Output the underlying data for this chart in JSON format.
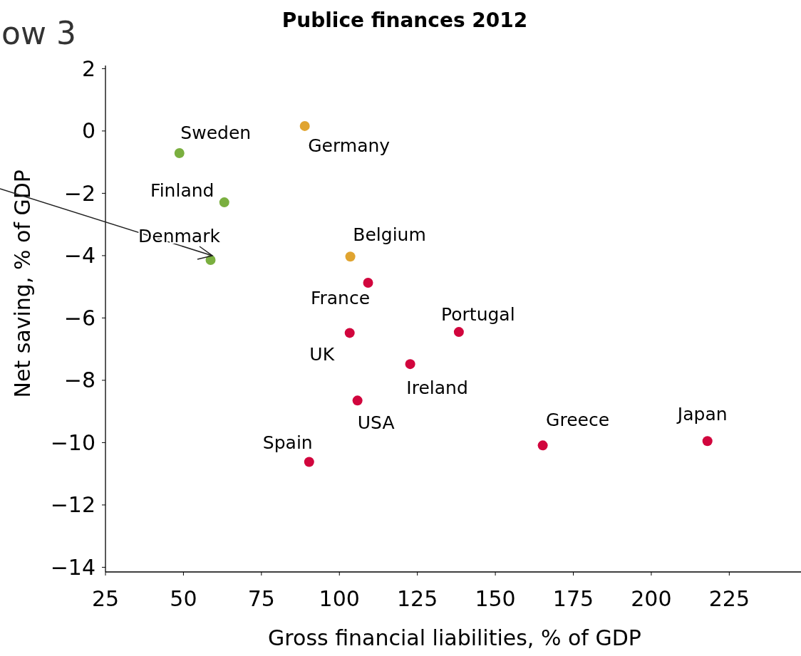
{
  "chart_data": {
    "type": "scatter",
    "title": "Publice finances 2012",
    "xlabel": "Gross financial liabilities, % of GDP",
    "ylabel": "Net saving, % of GDP",
    "xlim": [
      25,
      248
    ],
    "xticks": [
      25,
      50,
      75,
      100,
      125,
      150,
      175,
      200,
      225
    ],
    "ylim": [
      -14.15,
      2.1
    ],
    "yticks": [
      -14,
      -12,
      -10,
      -8,
      -6,
      -4,
      -2,
      0,
      2
    ],
    "grid": false,
    "marker": "circle",
    "series": [
      {
        "color": "#7aaf3f",
        "x": [
          48.7,
          63.1,
          58.7
        ],
        "values": [
          -0.71,
          -2.29,
          -4.14
        ]
      },
      {
        "color": "#e0a430",
        "x": [
          88.9,
          103.5
        ],
        "values": [
          0.16,
          -4.03
        ]
      },
      {
        "color": "#d1053d",
        "x": [
          109.2,
          103.3,
          138.3,
          122.7,
          105.8,
          90.3,
          165.2,
          218.0
        ],
        "values": [
          -4.87,
          -6.48,
          -6.45,
          -7.48,
          -8.65,
          -10.62,
          -10.09,
          -9.95
        ]
      }
    ],
    "annotations": [
      {
        "text": "Sweden",
        "x": 48.7,
        "y": -0.71
      },
      {
        "text": "Finland",
        "x": 63.1,
        "y": -2.29
      },
      {
        "text": "Denmark",
        "x": 58.7,
        "y": -4.14
      },
      {
        "text": "Germany",
        "x": 88.9,
        "y": 0.16
      },
      {
        "text": "Belgium",
        "x": 103.5,
        "y": -4.03
      },
      {
        "text": "France",
        "x": 109.2,
        "y": -4.87
      },
      {
        "text": "UK",
        "x": 103.3,
        "y": -6.48
      },
      {
        "text": "Portugal",
        "x": 138.3,
        "y": -6.45
      },
      {
        "text": "Ireland",
        "x": 122.7,
        "y": -7.48
      },
      {
        "text": "USA",
        "x": 105.8,
        "y": -8.65
      },
      {
        "text": "Spain",
        "x": 90.3,
        "y": -10.62
      },
      {
        "text": "Greece",
        "x": 165.2,
        "y": -10.09
      },
      {
        "text": "Japan",
        "x": 218.0,
        "y": -9.95
      },
      "ow 3"
    ]
  }
}
